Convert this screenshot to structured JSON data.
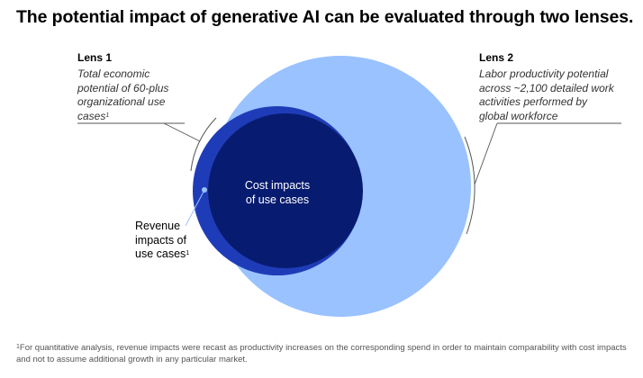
{
  "title": "The potential impact of generative AI can be evaluated through two lenses.",
  "lens1": {
    "heading": "Lens 1",
    "desc_lines": [
      "Total economic",
      "potential of 60-plus",
      "organizational use",
      "cases"
    ],
    "footnote_mark": "1"
  },
  "lens2": {
    "heading": "Lens 2",
    "desc_lines": [
      "Labor productivity potential",
      "across ~2,100 detailed work",
      "activities performed by",
      "global workforce"
    ]
  },
  "cost": {
    "lines": [
      "Cost impacts",
      "of use cases"
    ]
  },
  "revenue": {
    "lines": [
      "Revenue",
      "impacts of",
      "use cases"
    ],
    "footnote_mark": "1"
  },
  "footnote": {
    "mark": "1",
    "text": "For quantitative analysis, revenue impacts were recast as productivity increases on the corresponding spend in order to maintain comparability with cost impacts and not to assume additional growth in any particular market."
  },
  "colors": {
    "lens2_circle": "#99c2ff",
    "lens1_edge": "#1f3cb8",
    "cost_circle": "#071c70",
    "leader_lines": "#555555"
  }
}
